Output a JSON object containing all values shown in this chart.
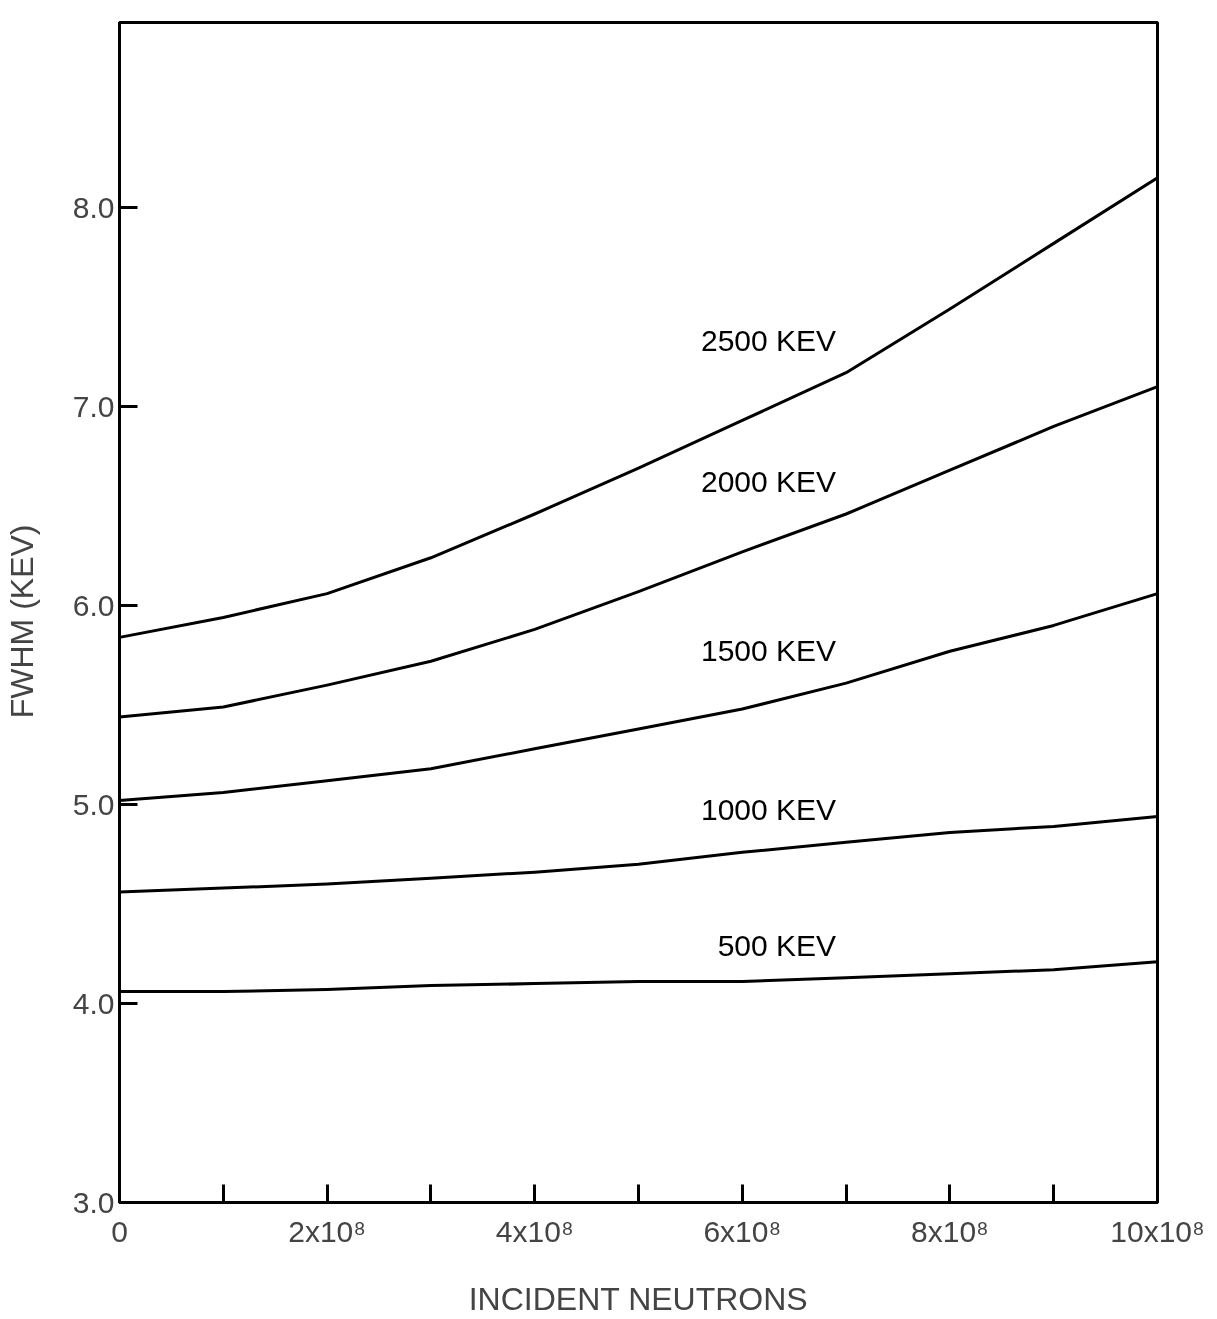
{
  "chart_data": {
    "type": "line",
    "xlabel": "INCIDENT NEUTRONS",
    "ylabel": "FWHM   (KEV)",
    "x": [
      0,
      100000000,
      200000000,
      300000000,
      400000000,
      500000000,
      600000000,
      700000000,
      800000000,
      900000000,
      1000000000
    ],
    "series": [
      {
        "name": "2500 KEV",
        "color": "#000000",
        "values": [
          5.84,
          5.94,
          6.06,
          6.24,
          6.46,
          6.69,
          6.93,
          7.17,
          7.49,
          7.82,
          8.15
        ]
      },
      {
        "name": "2000 KEV",
        "color": "#000000",
        "values": [
          5.44,
          5.49,
          5.6,
          5.72,
          5.88,
          6.07,
          6.27,
          6.46,
          6.68,
          6.9,
          7.1
        ]
      },
      {
        "name": "1500 KEV",
        "color": "#000000",
        "values": [
          5.02,
          5.06,
          5.12,
          5.18,
          5.28,
          5.38,
          5.48,
          5.61,
          5.77,
          5.9,
          6.06
        ]
      },
      {
        "name": "1000 KEV",
        "color": "#000000",
        "values": [
          4.56,
          4.58,
          4.6,
          4.63,
          4.66,
          4.7,
          4.76,
          4.81,
          4.86,
          4.89,
          4.94
        ]
      },
      {
        "name": "500 KEV",
        "color": "#000000",
        "values": [
          4.06,
          4.06,
          4.07,
          4.09,
          4.1,
          4.11,
          4.11,
          4.13,
          4.15,
          4.17,
          4.21
        ]
      }
    ],
    "xlim": [
      0,
      1000000000
    ],
    "ylim": [
      3,
      8.93
    ],
    "xticks": [
      {
        "value": 0,
        "label": "0"
      },
      {
        "value": 200000000,
        "label": "2x10⁸"
      },
      {
        "value": 400000000,
        "label": "4x10⁸"
      },
      {
        "value": 600000000,
        "label": "6x10⁸"
      },
      {
        "value": 800000000,
        "label": "8x10⁸"
      },
      {
        "value": 1000000000,
        "label": "10x10⁸"
      }
    ],
    "yticks": [
      {
        "value": 3,
        "label": "3.0"
      },
      {
        "value": 4,
        "label": "4.0"
      },
      {
        "value": 5,
        "label": "5.0"
      },
      {
        "value": 6,
        "label": "6.0"
      },
      {
        "value": 7,
        "label": "7.0"
      },
      {
        "value": 8,
        "label": "8.0"
      }
    ],
    "grid": false,
    "marker": "none",
    "line_style": "solid"
  }
}
